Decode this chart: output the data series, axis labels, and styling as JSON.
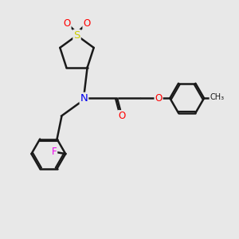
{
  "bg_color": "#e8e8e8",
  "bond_color": "#1a1a1a",
  "line_width": 1.8,
  "atom_colors": {
    "S": "#cccc00",
    "O": "#ff0000",
    "N": "#0000ee",
    "F": "#ee00ee",
    "C": "#1a1a1a"
  },
  "font_size": 8.5,
  "fig_size": [
    3.0,
    3.0
  ],
  "dpi": 100,
  "xlim": [
    0,
    10
  ],
  "ylim": [
    0,
    10
  ]
}
